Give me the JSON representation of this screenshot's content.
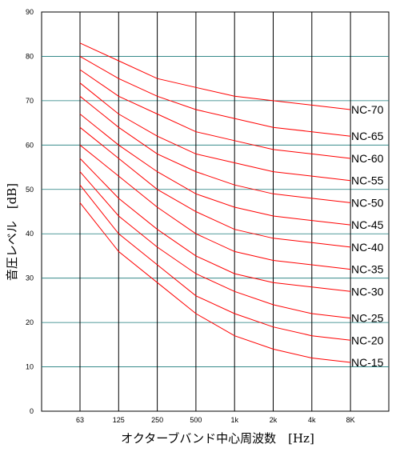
{
  "chart_data": {
    "type": "line",
    "title": "",
    "xlabel": "オクターブバンド中心周波数　[Hz]",
    "ylabel": "音圧レベル　[dB]",
    "categories": [
      "63",
      "125",
      "250",
      "500",
      "1k",
      "2k",
      "4k",
      "8K"
    ],
    "y_ticks": [
      "0",
      "10",
      "20",
      "30",
      "40",
      "50",
      "60",
      "70",
      "80",
      "90"
    ],
    "ylim": [
      0,
      90
    ],
    "grid": true,
    "colors": {
      "series": "#ff0000",
      "vgrid": "#000000",
      "hgrid": "#1a7a7a",
      "frame": "#000000"
    },
    "series": [
      {
        "name": "NC-70",
        "values": [
          83,
          79,
          75,
          73,
          71,
          70,
          69,
          68
        ]
      },
      {
        "name": "NC-65",
        "values": [
          80,
          75,
          71,
          68,
          66,
          64,
          63,
          62
        ]
      },
      {
        "name": "NC-60",
        "values": [
          77,
          71,
          67,
          63,
          61,
          59,
          58,
          57
        ]
      },
      {
        "name": "NC-55",
        "values": [
          74,
          67,
          62,
          58,
          56,
          54,
          53,
          52
        ]
      },
      {
        "name": "NC-50",
        "values": [
          71,
          64,
          58,
          54,
          51,
          49,
          48,
          47
        ]
      },
      {
        "name": "NC-45",
        "values": [
          67,
          60,
          54,
          49,
          46,
          44,
          43,
          42
        ]
      },
      {
        "name": "NC-40",
        "values": [
          64,
          57,
          50,
          45,
          41,
          39,
          38,
          37
        ]
      },
      {
        "name": "NC-35",
        "values": [
          60,
          53,
          46,
          40,
          36,
          34,
          33,
          32
        ]
      },
      {
        "name": "NC-30",
        "values": [
          57,
          48,
          41,
          35,
          31,
          29,
          28,
          27
        ]
      },
      {
        "name": "NC-25",
        "values": [
          54,
          44,
          37,
          31,
          27,
          24,
          22,
          21
        ]
      },
      {
        "name": "NC-20",
        "values": [
          51,
          40,
          33,
          26,
          22,
          19,
          17,
          16
        ]
      },
      {
        "name": "NC-15",
        "values": [
          47,
          36,
          29,
          22,
          17,
          14,
          12,
          11
        ]
      }
    ]
  }
}
